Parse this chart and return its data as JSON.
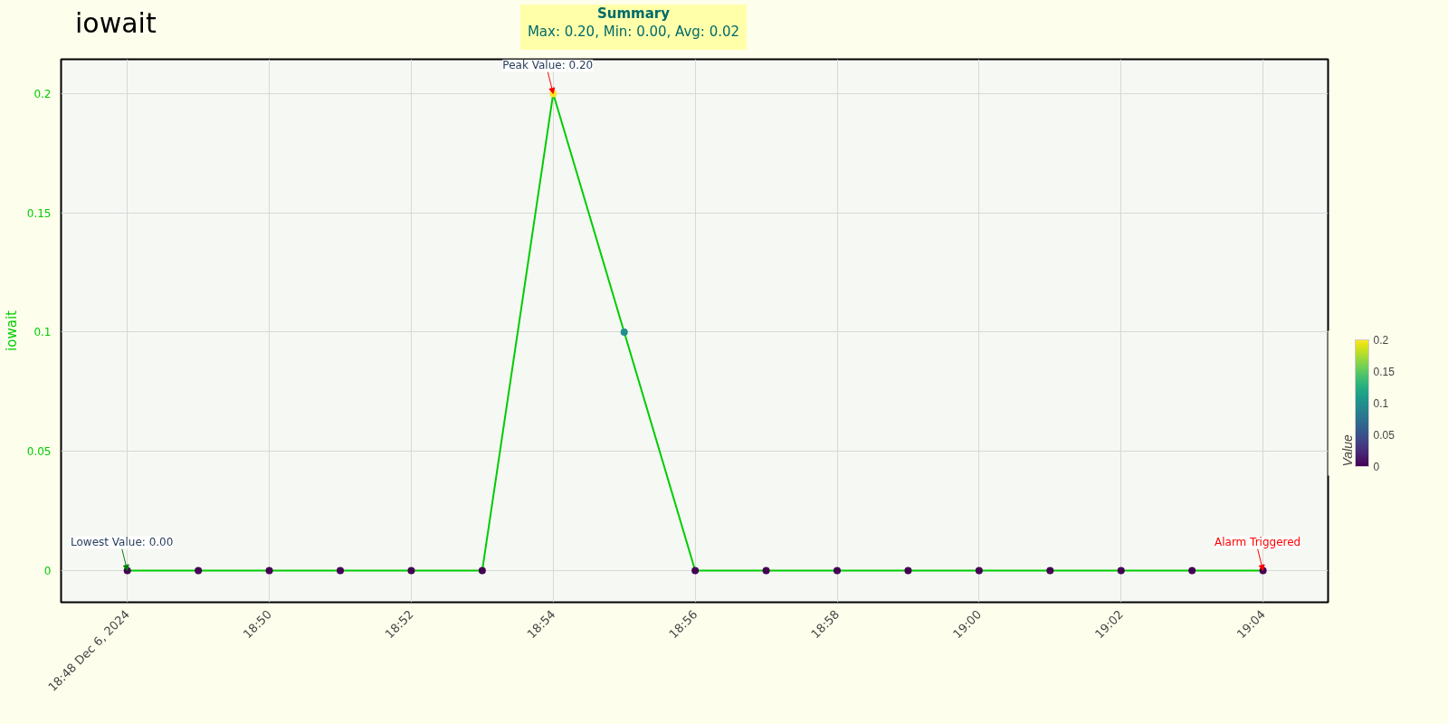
{
  "chart_data": {
    "type": "line",
    "title": "iowait",
    "subtitle": "Summary",
    "ylabel": "iowait",
    "clabel": "Value",
    "x": [
      "2024-12-06T18:48",
      "2024-12-06T18:49",
      "2024-12-06T18:50",
      "2024-12-06T18:51",
      "2024-12-06T18:52",
      "2024-12-06T18:53",
      "2024-12-06T18:54",
      "2024-12-06T18:55",
      "2024-12-06T18:56",
      "2024-12-06T18:57",
      "2024-12-06T18:58",
      "2024-12-06T18:59",
      "2024-12-06T19:00",
      "2024-12-06T19:01",
      "2024-12-06T19:02",
      "2024-12-06T19:03",
      "2024-12-06T19:04"
    ],
    "series": [
      {
        "color": "#00cc00",
        "values": [
          0,
          0,
          0,
          0,
          0,
          0,
          0.2,
          0.1,
          0,
          0,
          0,
          0,
          0,
          0,
          0,
          0,
          0
        ]
      }
    ],
    "clim": [
      0,
      0.2
    ],
    "cticks": [
      0,
      0.05,
      0.1,
      0.15,
      0.2
    ],
    "xlim": [
      "2024-12-06T18:47:04",
      "2024-12-06T19:04:55"
    ],
    "xticks": [
      {
        "value": "2024-12-06T18:48",
        "label": "18:48\nDec 6, 2024"
      },
      {
        "value": "2024-12-06T18:50",
        "label": "18:50"
      },
      {
        "value": "2024-12-06T18:52",
        "label": "18:52"
      },
      {
        "value": "2024-12-06T18:54",
        "label": "18:54"
      },
      {
        "value": "2024-12-06T18:56",
        "label": "18:56"
      },
      {
        "value": "2024-12-06T18:58",
        "label": "18:58"
      },
      {
        "value": "2024-12-06T19:00",
        "label": "19:00"
      },
      {
        "value": "2024-12-06T19:02",
        "label": "19:02"
      },
      {
        "value": "2024-12-06T19:04",
        "label": "19:04"
      }
    ],
    "ylim": [
      -0.0133,
      0.2144
    ],
    "yticks": [
      0,
      0.05,
      0.1,
      0.15,
      0.2
    ],
    "grid": true,
    "marker": "circle",
    "line_style": "solid",
    "annotations": [
      "Max: 0.20, Min: 0.00, Avg: 0.02",
      {
        "text": "Peak Value: 0.20",
        "x": "2024-12-06T18:54",
        "y": 0.2
      },
      {
        "text": "Lowest Value: 0.00",
        "x": "2024-12-06T18:48",
        "y": 0
      },
      {
        "text": "Alarm Triggered",
        "x": "2024-12-06T19:04",
        "y": 0
      }
    ]
  }
}
